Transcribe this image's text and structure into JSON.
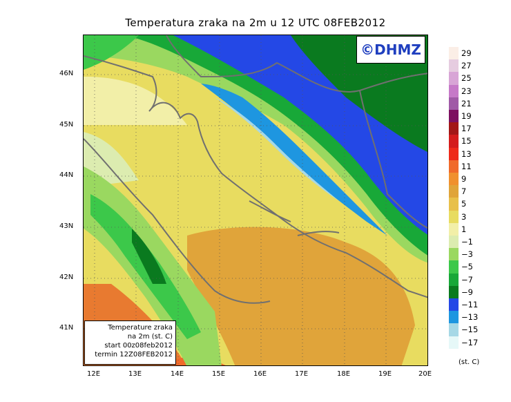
{
  "title": "Temperatura zraka na 2m u 12 UTC 08FEB2012",
  "logo": "©DHMZ",
  "infobox": {
    "line1": "Temperature zraka",
    "line2": "na 2m (st. C)",
    "line3": "start 00z08feb2012",
    "line4": "termin 12Z08FEB2012"
  },
  "lat_labels": [
    "46N",
    "45N",
    "44N",
    "43N",
    "42N",
    "41N"
  ],
  "lon_labels": [
    "12E",
    "13E",
    "14E",
    "15E",
    "16E",
    "17E",
    "18E",
    "19E",
    "20E"
  ],
  "colorbar": {
    "labels": [
      "29",
      "27",
      "25",
      "23",
      "21",
      "19",
      "17",
      "15",
      "13",
      "11",
      "9",
      "7",
      "5",
      "3",
      "1",
      "−1",
      "−3",
      "−5",
      "−7",
      "−9",
      "−11",
      "−13",
      "−15",
      "−17"
    ],
    "colors": [
      "#fbeee6",
      "#e6cce0",
      "#d8a5d6",
      "#c679c8",
      "#a05aa7",
      "#7d1060",
      "#a31717",
      "#d41c1c",
      "#ee2a1a",
      "#f06a2a",
      "#f0902e",
      "#e0a43a",
      "#e8c04a",
      "#e8dc60",
      "#f2efa8",
      "#dcecb0",
      "#9ad860",
      "#3cc84a",
      "#18a838",
      "#0a7a1f",
      "#2448e6",
      "#1e96e0",
      "#a6d8e6",
      "#e6f8f8"
    ],
    "units": "(st. C)"
  }
}
